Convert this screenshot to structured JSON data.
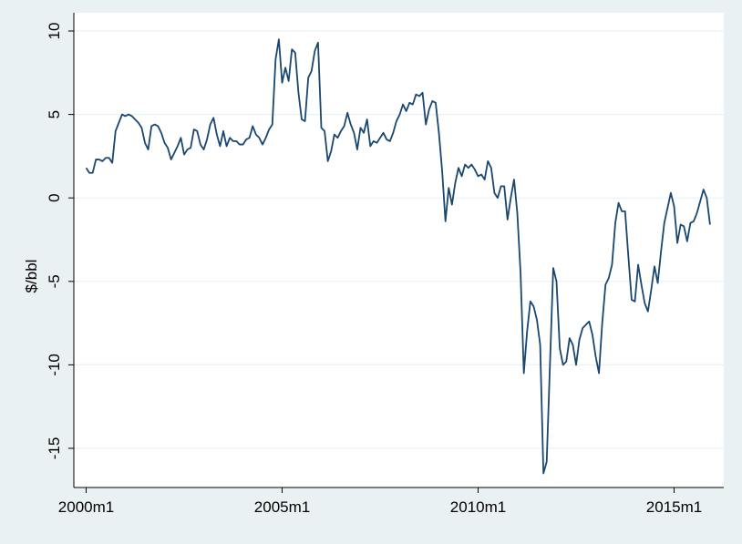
{
  "chart_data": {
    "type": "line",
    "title": "",
    "xlabel": "",
    "ylabel": "$/bbl",
    "ylim": [
      -16.5,
      10
    ],
    "yticks": [
      10,
      5,
      0,
      -5,
      -10,
      -15
    ],
    "xtick_labels": [
      "2000m1",
      "2005m1",
      "2010m1",
      "2015m1"
    ],
    "xtick_index": [
      0,
      60,
      120,
      180
    ],
    "grid": true,
    "line_color": "#1a476f",
    "background_outer": "#eaf1f3",
    "background_plot": "#ffffff",
    "series": [
      {
        "start": "2000m1",
        "frequency": "monthly",
        "values": [
          1.8,
          1.5,
          1.5,
          2.3,
          2.3,
          2.2,
          2.4,
          2.4,
          2.1,
          4.0,
          4.5,
          5.0,
          4.9,
          5.0,
          4.9,
          4.7,
          4.5,
          4.2,
          3.3,
          2.9,
          4.3,
          4.4,
          4.3,
          3.9,
          3.3,
          3.0,
          2.3,
          2.7,
          3.1,
          3.6,
          2.6,
          2.9,
          3.0,
          4.1,
          4.0,
          3.2,
          2.9,
          3.5,
          4.4,
          4.8,
          3.8,
          3.1,
          4.0,
          3.1,
          3.6,
          3.4,
          3.4,
          3.2,
          3.2,
          3.5,
          3.6,
          4.3,
          3.8,
          3.6,
          3.2,
          3.6,
          4.1,
          4.4,
          8.3,
          9.5,
          6.9,
          7.8,
          7.0,
          8.9,
          8.7,
          6.3,
          4.7,
          4.6,
          7.2,
          7.6,
          8.8,
          9.3,
          4.2,
          4.0,
          2.2,
          2.8,
          3.8,
          3.6,
          4.0,
          4.3,
          5.1,
          4.4,
          3.9,
          2.9,
          4.2,
          3.9,
          4.7,
          3.1,
          3.4,
          3.3,
          3.6,
          3.9,
          3.5,
          3.4,
          3.9,
          4.6,
          5.0,
          5.6,
          5.2,
          5.7,
          5.6,
          6.2,
          6.1,
          6.3,
          4.4,
          5.3,
          5.8,
          5.7,
          3.9,
          1.6,
          -1.4,
          0.6,
          -0.4,
          0.9,
          1.8,
          1.3,
          2.0,
          1.8,
          2.0,
          1.7,
          1.3,
          1.4,
          1.1,
          2.2,
          1.8,
          0.3,
          0.0,
          0.7,
          0.7,
          -1.3,
          0.0,
          1.1,
          -0.9,
          -4.5,
          -10.5,
          -8.0,
          -6.2,
          -6.5,
          -7.3,
          -8.8,
          -16.5,
          -15.8,
          -10.0,
          -4.2,
          -5.0,
          -9.0,
          -10.0,
          -9.8,
          -8.4,
          -8.8,
          -10.0,
          -8.5,
          -7.8,
          -7.6,
          -7.4,
          -8.2,
          -9.5,
          -10.5,
          -7.5,
          -5.2,
          -4.8,
          -4.0,
          -1.5,
          -0.3,
          -0.8,
          -0.8,
          -3.5,
          -6.1,
          -6.2,
          -4.0,
          -5.2,
          -6.3,
          -6.8,
          -5.5,
          -4.1,
          -5.1,
          -3.2,
          -1.5,
          -0.6,
          0.3,
          -0.5,
          -2.7,
          -1.6,
          -1.7,
          -2.6,
          -1.5,
          -1.4,
          -0.9,
          -0.2,
          0.5,
          0.0,
          -1.6
        ]
      }
    ]
  }
}
